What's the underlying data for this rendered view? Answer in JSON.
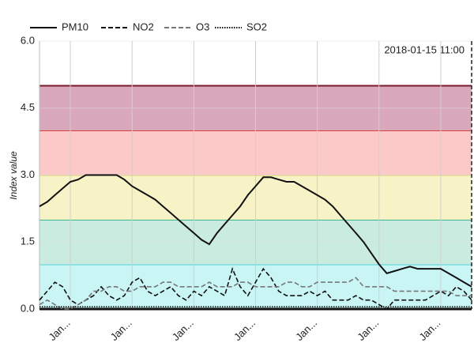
{
  "chart_data": {
    "type": "line",
    "y_label": "Index value",
    "annotation": "2018-01-15 11:00",
    "categories": [
      "",
      "",
      "",
      "",
      "Jan...",
      "",
      "",
      "",
      "",
      "",
      "",
      "",
      "Jan...",
      "",
      "",
      "",
      "",
      "",
      "",
      "",
      "Jan...",
      "",
      "",
      "",
      "",
      "",
      "",
      "",
      "Jan...",
      "",
      "",
      "",
      "",
      "",
      "",
      "",
      "Jan...",
      "",
      "",
      "",
      "",
      "",
      "",
      "",
      "Jan...",
      "",
      "",
      "",
      "",
      "",
      "",
      "",
      "Jan...",
      "",
      "",
      "",
      ""
    ],
    "series": [
      {
        "name": "PM10",
        "color": "#111111",
        "style": "solid",
        "values": [
          2.3,
          2.4,
          2.55,
          2.7,
          2.85,
          2.9,
          3.0,
          3.0,
          3.0,
          3.0,
          3.0,
          2.9,
          2.75,
          2.65,
          2.55,
          2.45,
          2.3,
          2.15,
          2.0,
          1.85,
          1.7,
          1.55,
          1.45,
          1.7,
          1.9,
          2.1,
          2.3,
          2.55,
          2.75,
          2.95,
          2.95,
          2.9,
          2.85,
          2.85,
          2.75,
          2.65,
          2.55,
          2.45,
          2.3,
          2.1,
          1.9,
          1.7,
          1.5,
          1.25,
          1.0,
          0.8,
          0.85,
          0.9,
          0.95,
          0.9,
          0.9,
          0.9,
          0.9,
          0.8,
          0.7,
          0.6,
          0.5
        ]
      },
      {
        "name": "NO2",
        "color": "#111111",
        "style": "dashed",
        "values": [
          0.2,
          0.4,
          0.6,
          0.5,
          0.2,
          0.1,
          0.2,
          0.3,
          0.5,
          0.3,
          0.2,
          0.3,
          0.6,
          0.7,
          0.4,
          0.3,
          0.4,
          0.5,
          0.3,
          0.2,
          0.4,
          0.3,
          0.5,
          0.4,
          0.3,
          0.9,
          0.5,
          0.3,
          0.6,
          0.9,
          0.7,
          0.4,
          0.3,
          0.3,
          0.3,
          0.4,
          0.3,
          0.4,
          0.2,
          0.2,
          0.2,
          0.3,
          0.2,
          0.2,
          0.1,
          0.0,
          0.2,
          0.2,
          0.2,
          0.2,
          0.2,
          0.3,
          0.4,
          0.3,
          0.5,
          0.4,
          0.2
        ]
      },
      {
        "name": "O3",
        "color": "#777777",
        "style": "dashed",
        "values": [
          0.1,
          0.2,
          0.1,
          0.0,
          0.0,
          0.1,
          0.2,
          0.4,
          0.4,
          0.5,
          0.5,
          0.4,
          0.4,
          0.5,
          0.5,
          0.5,
          0.6,
          0.6,
          0.5,
          0.5,
          0.5,
          0.5,
          0.6,
          0.5,
          0.5,
          0.5,
          0.6,
          0.6,
          0.5,
          0.5,
          0.5,
          0.5,
          0.6,
          0.6,
          0.5,
          0.5,
          0.6,
          0.6,
          0.6,
          0.6,
          0.6,
          0.7,
          0.5,
          0.5,
          0.5,
          0.5,
          0.4,
          0.4,
          0.4,
          0.4,
          0.4,
          0.4,
          0.4,
          0.4,
          0.3,
          0.3,
          0.3
        ]
      },
      {
        "name": "SO2",
        "color": "#111111",
        "style": "dotted",
        "values": [
          0.05,
          0.05,
          0.05,
          0.05,
          0.05,
          0.05,
          0.05,
          0.05,
          0.05,
          0.05,
          0.05,
          0.05,
          0.05,
          0.05,
          0.05,
          0.05,
          0.05,
          0.05,
          0.05,
          0.05,
          0.05,
          0.05,
          0.05,
          0.05,
          0.05,
          0.05,
          0.05,
          0.05,
          0.05,
          0.05,
          0.05,
          0.05,
          0.05,
          0.05,
          0.05,
          0.05,
          0.05,
          0.05,
          0.05,
          0.05,
          0.05,
          0.05,
          0.05,
          0.05,
          0.05,
          0.05,
          0.05,
          0.05,
          0.05,
          0.05,
          0.05,
          0.05,
          0.05,
          0.05,
          0.05,
          0.05,
          0.05
        ]
      }
    ],
    "bands": [
      {
        "from": 0,
        "to": 1,
        "color": "#c9f5f5",
        "line_color": "#4fd6d6"
      },
      {
        "from": 1,
        "to": 2,
        "color": "#c9ebe0",
        "line_color": "#3cb58f"
      },
      {
        "from": 2,
        "to": 3,
        "color": "#f8f3c6",
        "line_color": "#d9cf5a"
      },
      {
        "from": 3,
        "to": 4,
        "color": "#fcc9c9",
        "line_color": "#d94040"
      },
      {
        "from": 4,
        "to": 5,
        "color": "#d9a9bb",
        "line_color": "#7a1a2a"
      }
    ],
    "ylim": [
      0,
      6
    ],
    "yticks": [
      {
        "value": 0,
        "label": "0.0"
      },
      {
        "value": 1.5,
        "label": "1.5"
      },
      {
        "value": 3,
        "label": "3.0"
      },
      {
        "value": 4.5,
        "label": "4.5"
      },
      {
        "value": 6,
        "label": "6.0"
      }
    ],
    "grid": true
  }
}
